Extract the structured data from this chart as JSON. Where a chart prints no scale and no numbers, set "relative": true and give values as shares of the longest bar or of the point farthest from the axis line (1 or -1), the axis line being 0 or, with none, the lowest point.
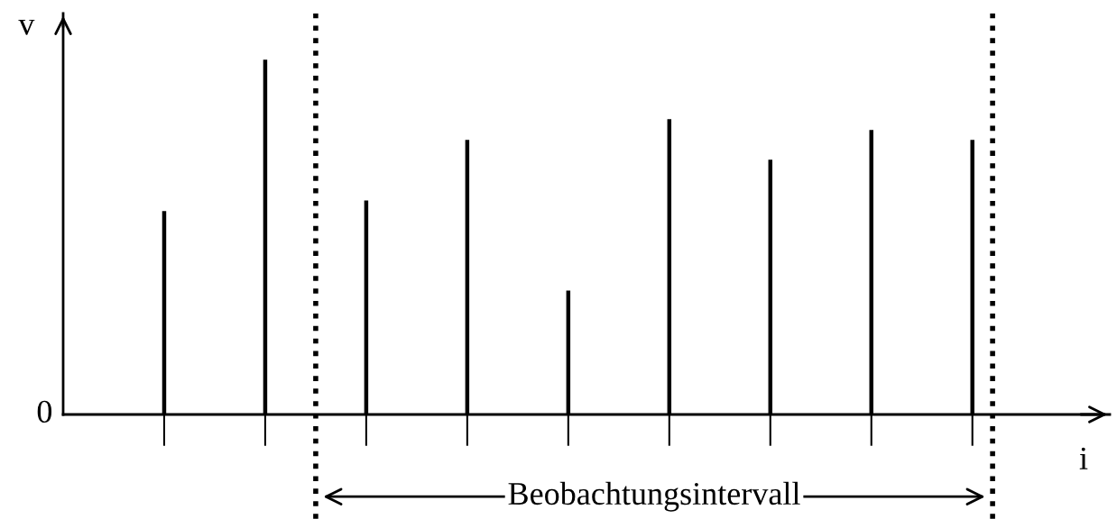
{
  "chart_data": {
    "type": "bar",
    "relative": true,
    "categories": [
      null,
      null,
      null,
      null,
      null,
      null,
      null,
      null,
      null
    ],
    "values": [
      0.573,
      1,
      0.603,
      0.774,
      0.349,
      0.832,
      0.718,
      0.802,
      0.774
    ],
    "color": "#000000",
    "xlabel": "i",
    "ylabel": "v",
    "annotations": [
      "0",
      "Beobachtungsintervall"
    ],
    "grid": false,
    "legend": false
  }
}
